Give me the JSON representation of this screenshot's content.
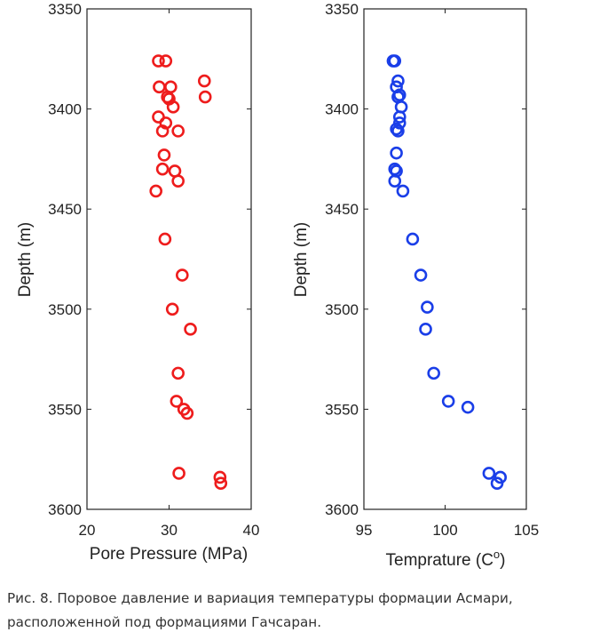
{
  "chart_data": [
    {
      "type": "scatter",
      "xlabel": "Pore Pressure (MPa)",
      "ylabel": "Depth (m)",
      "xlim": [
        20,
        40
      ],
      "ylim": [
        3350,
        3600
      ],
      "y_inverted": true,
      "xticks": [
        "20",
        "30",
        "40"
      ],
      "yticks": [
        "3350",
        "3400",
        "3450",
        "3500",
        "3550",
        "3600"
      ],
      "marker_color": "#ee1c1c",
      "series": [
        {
          "name": "Pore Pressure",
          "points": [
            [
              28.7,
              3376
            ],
            [
              29.6,
              3376
            ],
            [
              34.3,
              3386
            ],
            [
              34.4,
              3394
            ],
            [
              28.8,
              3389
            ],
            [
              30.2,
              3389
            ],
            [
              29.8,
              3394
            ],
            [
              30.0,
              3395
            ],
            [
              30.5,
              3399
            ],
            [
              28.7,
              3404
            ],
            [
              29.6,
              3407
            ],
            [
              29.2,
              3411
            ],
            [
              31.1,
              3411
            ],
            [
              29.4,
              3423
            ],
            [
              29.2,
              3430
            ],
            [
              30.7,
              3431
            ],
            [
              31.1,
              3436
            ],
            [
              28.4,
              3441
            ],
            [
              29.5,
              3465
            ],
            [
              31.6,
              3483
            ],
            [
              30.4,
              3500
            ],
            [
              32.6,
              3510
            ],
            [
              31.1,
              3532
            ],
            [
              30.9,
              3546
            ],
            [
              31.8,
              3550
            ],
            [
              32.2,
              3552
            ],
            [
              31.2,
              3582
            ],
            [
              36.2,
              3584
            ],
            [
              36.3,
              3587
            ]
          ]
        }
      ]
    },
    {
      "type": "scatter",
      "xlabel": "Temprature (C",
      "xlabel_sup": "o",
      "xlabel_end": ")",
      "ylabel": "Depth (m)",
      "xlim": [
        95,
        105
      ],
      "ylim": [
        3350,
        3600
      ],
      "y_inverted": true,
      "xticks": [
        "95",
        "100",
        "105"
      ],
      "yticks": [
        "3350",
        "3400",
        "3450",
        "3500",
        "3550",
        "3600"
      ],
      "marker_color": "#1a3ee8",
      "series": [
        {
          "name": "Temperature",
          "points": [
            [
              96.8,
              3376
            ],
            [
              96.9,
              3376
            ],
            [
              97.1,
              3386
            ],
            [
              97.0,
              3389
            ],
            [
              97.2,
              3393
            ],
            [
              97.1,
              3394
            ],
            [
              97.3,
              3399
            ],
            [
              97.2,
              3404
            ],
            [
              97.2,
              3407
            ],
            [
              97.0,
              3410
            ],
            [
              97.1,
              3411
            ],
            [
              97.0,
              3422
            ],
            [
              96.9,
              3430
            ],
            [
              97.0,
              3431
            ],
            [
              96.9,
              3436
            ],
            [
              97.4,
              3441
            ],
            [
              98.0,
              3465
            ],
            [
              98.5,
              3483
            ],
            [
              98.9,
              3499
            ],
            [
              98.8,
              3510
            ],
            [
              99.3,
              3532
            ],
            [
              100.2,
              3546
            ],
            [
              101.4,
              3549
            ],
            [
              102.7,
              3582
            ],
            [
              103.4,
              3584
            ],
            [
              103.2,
              3587
            ]
          ]
        }
      ]
    }
  ],
  "caption": {
    "line1": "Рис. 8. Поровое давление и вариация температуры формации Асмари,",
    "line2": "расположенной под формациями Гачсаран."
  }
}
